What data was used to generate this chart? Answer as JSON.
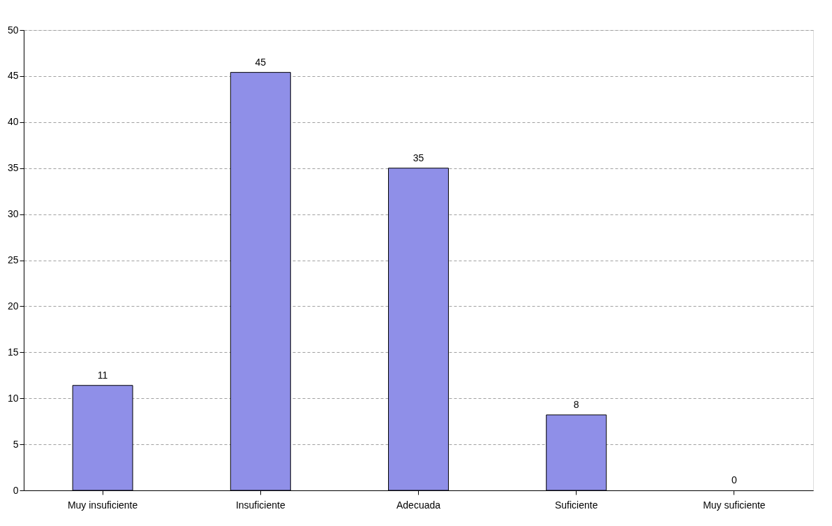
{
  "chart_data": {
    "type": "bar",
    "categories": [
      "Muy insuficiente",
      "Insuficiente",
      "Adecuada",
      "Suficiente",
      "Muy suficiente"
    ],
    "values": [
      11.4,
      45.4,
      35,
      8.2,
      0
    ],
    "value_labels": [
      "11",
      "45",
      "35",
      "8",
      "0"
    ],
    "color": "#8f8fe8",
    "ylim": [
      0,
      50
    ],
    "yticks": [
      0,
      5,
      10,
      15,
      20,
      25,
      30,
      35,
      40,
      45,
      50
    ],
    "grid": "y"
  }
}
